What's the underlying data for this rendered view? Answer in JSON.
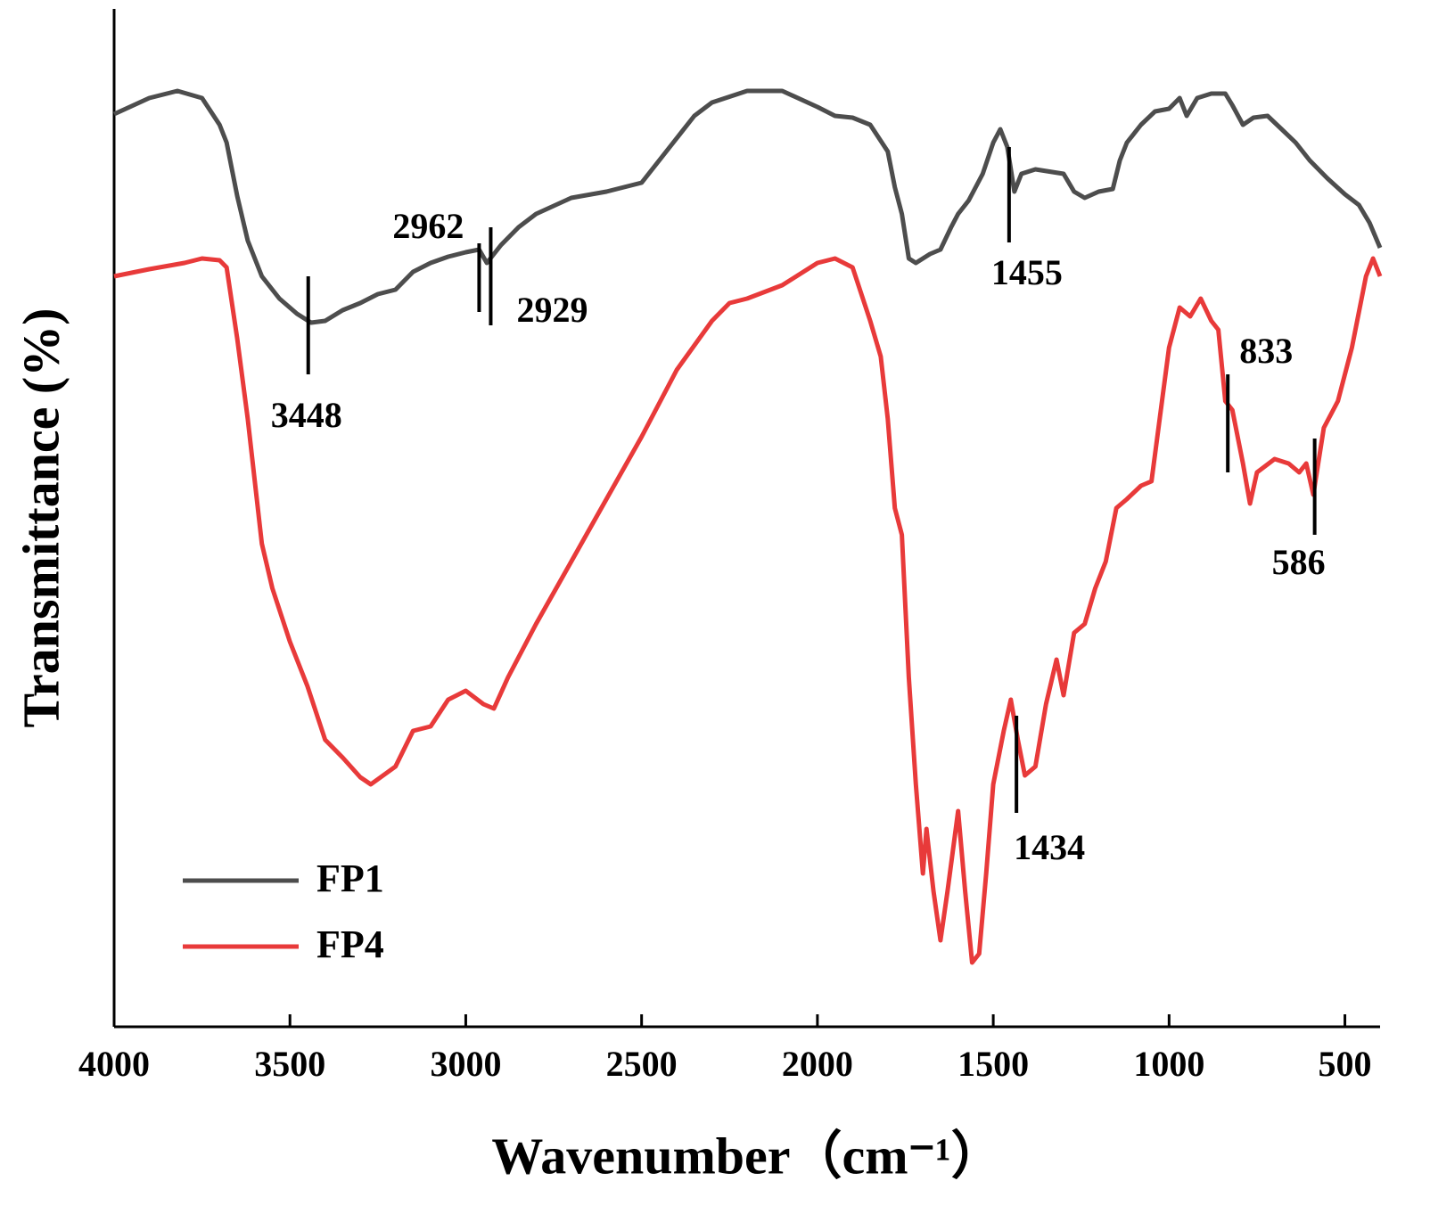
{
  "chart_data": {
    "type": "line",
    "xlabel": "Wavenumber（cm⁻¹）",
    "ylabel": "Transmittance (%)",
    "xlim": [
      4000,
      400
    ],
    "xticks": [
      4000,
      3500,
      3000,
      2500,
      2000,
      1500,
      1000,
      500
    ],
    "ylim": [
      0,
      1142
    ],
    "legend": "lower left",
    "series": [
      {
        "name": "FP1",
        "color": "#4d4d4d",
        "x": [
          4000,
          3900,
          3820,
          3750,
          3700,
          3680,
          3650,
          3620,
          3580,
          3530,
          3480,
          3440,
          3400,
          3350,
          3300,
          3250,
          3200,
          3150,
          3100,
          3050,
          3000,
          2962,
          2940,
          2900,
          2850,
          2800,
          2700,
          2600,
          2500,
          2450,
          2400,
          2350,
          2300,
          2200,
          2100,
          2000,
          1950,
          1900,
          1850,
          1800,
          1780,
          1760,
          1740,
          1720,
          1700,
          1680,
          1650,
          1620,
          1600,
          1570,
          1530,
          1500,
          1480,
          1460,
          1440,
          1420,
          1380,
          1300,
          1270,
          1240,
          1200,
          1160,
          1140,
          1120,
          1080,
          1040,
          1000,
          970,
          950,
          920,
          880,
          840,
          820,
          790,
          760,
          720,
          680,
          640,
          600,
          550,
          500,
          460,
          430,
          400
        ],
        "values": [
          1024,
          1042,
          1050,
          1042,
          1012,
          992,
          932,
          882,
          842,
          817,
          800,
          790,
          792,
          804,
          812,
          822,
          827,
          847,
          857,
          864,
          869,
          872,
          857,
          877,
          897,
          912,
          930,
          937,
          947,
          972,
          997,
          1022,
          1037,
          1050,
          1050,
          1032,
          1022,
          1020,
          1012,
          982,
          942,
          912,
          862,
          857,
          862,
          867,
          872,
          897,
          912,
          927,
          957,
          992,
          1007,
          987,
          937,
          957,
          962,
          957,
          937,
          930,
          937,
          940,
          972,
          992,
          1012,
          1027,
          1030,
          1042,
          1022,
          1042,
          1047,
          1047,
          1034,
          1012,
          1020,
          1022,
          1007,
          992,
          972,
          952,
          934,
          922,
          902,
          874
        ]
      },
      {
        "name": "FP4",
        "color": "#e83a3a",
        "x": [
          4000,
          3900,
          3800,
          3750,
          3700,
          3680,
          3650,
          3620,
          3600,
          3580,
          3550,
          3500,
          3450,
          3400,
          3350,
          3300,
          3270,
          3200,
          3150,
          3100,
          3050,
          3000,
          2950,
          2920,
          2880,
          2800,
          2700,
          2600,
          2500,
          2400,
          2300,
          2250,
          2200,
          2100,
          2000,
          1950,
          1900,
          1850,
          1820,
          1800,
          1780,
          1760,
          1740,
          1720,
          1700,
          1690,
          1670,
          1650,
          1630,
          1600,
          1580,
          1560,
          1540,
          1520,
          1500,
          1470,
          1450,
          1430,
          1410,
          1380,
          1350,
          1320,
          1300,
          1270,
          1240,
          1210,
          1180,
          1150,
          1120,
          1080,
          1050,
          1020,
          1000,
          970,
          940,
          910,
          880,
          860,
          840,
          820,
          790,
          770,
          750,
          700,
          660,
          630,
          610,
          590,
          560,
          520,
          480,
          440,
          420,
          400
        ],
        "values": [
          842,
          850,
          857,
          862,
          860,
          852,
          772,
          682,
          612,
          542,
          492,
          432,
          382,
          322,
          302,
          280,
          272,
          292,
          332,
          337,
          367,
          377,
          362,
          357,
          392,
          452,
          522,
          592,
          662,
          737,
          792,
          812,
          817,
          832,
          857,
          862,
          852,
          792,
          752,
          682,
          582,
          552,
          392,
          272,
          172,
          222,
          152,
          97,
          152,
          242,
          152,
          72,
          82,
          172,
          272,
          332,
          367,
          322,
          282,
          292,
          362,
          412,
          372,
          442,
          452,
          492,
          522,
          582,
          592,
          607,
          612,
          702,
          762,
          807,
          797,
          817,
          792,
          782,
          702,
          692,
          632,
          587,
          622,
          637,
          632,
          622,
          632,
          597,
          672,
          702,
          762,
          842,
          862,
          842
        ]
      }
    ],
    "annotations": [
      "3448",
      "2962",
      "2929",
      "1455",
      "1434",
      "833",
      "586"
    ]
  }
}
